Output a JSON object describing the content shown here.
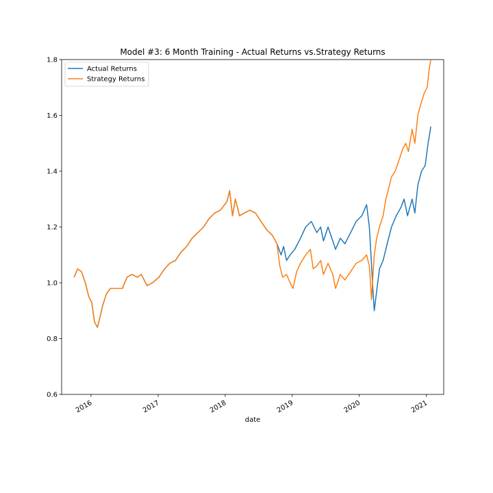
{
  "chart_data": {
    "type": "line",
    "title": "Model #3: 6 Month Training - Actual Returns vs.Strategy Returns",
    "xlabel": "date",
    "ylabel": "",
    "xlim": [
      "2015-07-25",
      "2021-04-05"
    ],
    "ylim": [
      0.6,
      1.8
    ],
    "grid": false,
    "legend_position": "top-left",
    "x_ticks": [
      "2016",
      "2017",
      "2018",
      "2019",
      "2020",
      "2021"
    ],
    "y_ticks": [
      0.6,
      0.8,
      1.0,
      1.2,
      1.4,
      1.6,
      1.8
    ],
    "series": [
      {
        "name": "Actual Returns",
        "color": "#1f77b4",
        "points": [
          [
            "2015-10-01",
            1.02
          ],
          [
            "2015-10-20",
            1.05
          ],
          [
            "2015-11-10",
            1.04
          ],
          [
            "2015-12-01",
            1.0
          ],
          [
            "2015-12-20",
            0.95
          ],
          [
            "2016-01-05",
            0.93
          ],
          [
            "2016-01-20",
            0.86
          ],
          [
            "2016-02-05",
            0.84
          ],
          [
            "2016-02-20",
            0.88
          ],
          [
            "2016-03-05",
            0.92
          ],
          [
            "2016-03-25",
            0.96
          ],
          [
            "2016-04-15",
            0.98
          ],
          [
            "2016-05-15",
            0.98
          ],
          [
            "2016-06-20",
            0.98
          ],
          [
            "2016-07-15",
            1.02
          ],
          [
            "2016-08-10",
            1.03
          ],
          [
            "2016-09-10",
            1.02
          ],
          [
            "2016-10-01",
            1.03
          ],
          [
            "2016-11-01",
            0.99
          ],
          [
            "2016-12-01",
            1.0
          ],
          [
            "2017-01-05",
            1.02
          ],
          [
            "2017-02-05",
            1.05
          ],
          [
            "2017-03-05",
            1.07
          ],
          [
            "2017-04-05",
            1.08
          ],
          [
            "2017-05-05",
            1.11
          ],
          [
            "2017-06-05",
            1.13
          ],
          [
            "2017-07-05",
            1.16
          ],
          [
            "2017-08-05",
            1.18
          ],
          [
            "2017-09-05",
            1.2
          ],
          [
            "2017-10-05",
            1.23
          ],
          [
            "2017-11-05",
            1.25
          ],
          [
            "2017-12-05",
            1.26
          ],
          [
            "2018-01-10",
            1.29
          ],
          [
            "2018-01-25",
            1.33
          ],
          [
            "2018-02-10",
            1.24
          ],
          [
            "2018-02-25",
            1.3
          ],
          [
            "2018-03-20",
            1.24
          ],
          [
            "2018-04-15",
            1.25
          ],
          [
            "2018-05-15",
            1.26
          ],
          [
            "2018-06-15",
            1.25
          ],
          [
            "2018-07-15",
            1.22
          ],
          [
            "2018-08-15",
            1.19
          ],
          [
            "2018-09-15",
            1.17
          ],
          [
            "2018-10-10",
            1.14
          ],
          [
            "2018-11-01",
            1.1
          ],
          [
            "2018-11-15",
            1.13
          ],
          [
            "2018-12-01",
            1.08
          ],
          [
            "2018-12-20",
            1.1
          ],
          [
            "2019-01-15",
            1.12
          ],
          [
            "2019-02-15",
            1.16
          ],
          [
            "2019-03-15",
            1.2
          ],
          [
            "2019-04-15",
            1.22
          ],
          [
            "2019-05-15",
            1.18
          ],
          [
            "2019-06-05",
            1.2
          ],
          [
            "2019-06-20",
            1.15
          ],
          [
            "2019-07-15",
            1.2
          ],
          [
            "2019-08-10",
            1.15
          ],
          [
            "2019-08-25",
            1.12
          ],
          [
            "2019-09-20",
            1.16
          ],
          [
            "2019-10-15",
            1.14
          ],
          [
            "2019-11-15",
            1.18
          ],
          [
            "2019-12-15",
            1.22
          ],
          [
            "2020-01-15",
            1.24
          ],
          [
            "2020-02-10",
            1.28
          ],
          [
            "2020-02-25",
            1.2
          ],
          [
            "2020-03-05",
            1.1
          ],
          [
            "2020-03-15",
            0.98
          ],
          [
            "2020-03-23",
            0.9
          ],
          [
            "2020-04-05",
            0.97
          ],
          [
            "2020-04-20",
            1.05
          ],
          [
            "2020-05-10",
            1.08
          ],
          [
            "2020-06-05",
            1.15
          ],
          [
            "2020-06-25",
            1.2
          ],
          [
            "2020-07-20",
            1.24
          ],
          [
            "2020-08-15",
            1.27
          ],
          [
            "2020-09-01",
            1.3
          ],
          [
            "2020-09-20",
            1.24
          ],
          [
            "2020-10-15",
            1.3
          ],
          [
            "2020-10-30",
            1.25
          ],
          [
            "2020-11-15",
            1.35
          ],
          [
            "2020-12-05",
            1.4
          ],
          [
            "2020-12-25",
            1.42
          ],
          [
            "2021-01-10",
            1.5
          ],
          [
            "2021-01-25",
            1.56
          ]
        ]
      },
      {
        "name": "Strategy Returns",
        "color": "#ff7f0e",
        "points": [
          [
            "2015-10-01",
            1.02
          ],
          [
            "2015-10-20",
            1.05
          ],
          [
            "2015-11-10",
            1.04
          ],
          [
            "2015-12-01",
            1.0
          ],
          [
            "2015-12-20",
            0.95
          ],
          [
            "2016-01-05",
            0.93
          ],
          [
            "2016-01-20",
            0.86
          ],
          [
            "2016-02-05",
            0.84
          ],
          [
            "2016-02-20",
            0.88
          ],
          [
            "2016-03-05",
            0.92
          ],
          [
            "2016-03-25",
            0.96
          ],
          [
            "2016-04-15",
            0.98
          ],
          [
            "2016-05-15",
            0.98
          ],
          [
            "2016-06-20",
            0.98
          ],
          [
            "2016-07-15",
            1.02
          ],
          [
            "2016-08-10",
            1.03
          ],
          [
            "2016-09-10",
            1.02
          ],
          [
            "2016-10-01",
            1.03
          ],
          [
            "2016-11-01",
            0.99
          ],
          [
            "2016-12-01",
            1.0
          ],
          [
            "2017-01-05",
            1.02
          ],
          [
            "2017-02-05",
            1.05
          ],
          [
            "2017-03-05",
            1.07
          ],
          [
            "2017-04-05",
            1.08
          ],
          [
            "2017-05-05",
            1.11
          ],
          [
            "2017-06-05",
            1.13
          ],
          [
            "2017-07-05",
            1.16
          ],
          [
            "2017-08-05",
            1.18
          ],
          [
            "2017-09-05",
            1.2
          ],
          [
            "2017-10-05",
            1.23
          ],
          [
            "2017-11-05",
            1.25
          ],
          [
            "2017-12-05",
            1.26
          ],
          [
            "2018-01-10",
            1.29
          ],
          [
            "2018-01-25",
            1.33
          ],
          [
            "2018-02-10",
            1.24
          ],
          [
            "2018-02-25",
            1.3
          ],
          [
            "2018-03-20",
            1.24
          ],
          [
            "2018-04-15",
            1.25
          ],
          [
            "2018-05-15",
            1.26
          ],
          [
            "2018-06-15",
            1.25
          ],
          [
            "2018-07-15",
            1.22
          ],
          [
            "2018-08-15",
            1.19
          ],
          [
            "2018-09-15",
            1.17
          ],
          [
            "2018-10-10",
            1.14
          ],
          [
            "2018-10-25",
            1.06
          ],
          [
            "2018-11-10",
            1.02
          ],
          [
            "2018-12-01",
            1.03
          ],
          [
            "2018-12-20",
            1.0
          ],
          [
            "2019-01-05",
            0.98
          ],
          [
            "2019-01-25",
            1.04
          ],
          [
            "2019-02-15",
            1.07
          ],
          [
            "2019-03-15",
            1.1
          ],
          [
            "2019-04-10",
            1.12
          ],
          [
            "2019-04-25",
            1.05
          ],
          [
            "2019-05-15",
            1.06
          ],
          [
            "2019-06-05",
            1.08
          ],
          [
            "2019-06-20",
            1.03
          ],
          [
            "2019-07-15",
            1.07
          ],
          [
            "2019-08-10",
            1.03
          ],
          [
            "2019-08-25",
            0.98
          ],
          [
            "2019-09-20",
            1.03
          ],
          [
            "2019-10-15",
            1.01
          ],
          [
            "2019-11-15",
            1.04
          ],
          [
            "2019-12-15",
            1.07
          ],
          [
            "2020-01-15",
            1.08
          ],
          [
            "2020-02-10",
            1.1
          ],
          [
            "2020-02-25",
            1.06
          ],
          [
            "2020-03-08",
            0.94
          ],
          [
            "2020-03-15",
            1.02
          ],
          [
            "2020-03-23",
            1.1
          ],
          [
            "2020-04-05",
            1.16
          ],
          [
            "2020-04-20",
            1.2
          ],
          [
            "2020-05-10",
            1.24
          ],
          [
            "2020-05-25",
            1.3
          ],
          [
            "2020-06-10",
            1.34
          ],
          [
            "2020-06-25",
            1.38
          ],
          [
            "2020-07-15",
            1.4
          ],
          [
            "2020-08-05",
            1.44
          ],
          [
            "2020-08-25",
            1.48
          ],
          [
            "2020-09-10",
            1.5
          ],
          [
            "2020-09-25",
            1.47
          ],
          [
            "2020-10-15",
            1.55
          ],
          [
            "2020-10-30",
            1.5
          ],
          [
            "2020-11-15",
            1.6
          ],
          [
            "2020-12-01",
            1.64
          ],
          [
            "2020-12-20",
            1.68
          ],
          [
            "2021-01-05",
            1.7
          ],
          [
            "2021-01-15",
            1.76
          ],
          [
            "2021-01-25",
            1.8
          ]
        ]
      }
    ]
  }
}
